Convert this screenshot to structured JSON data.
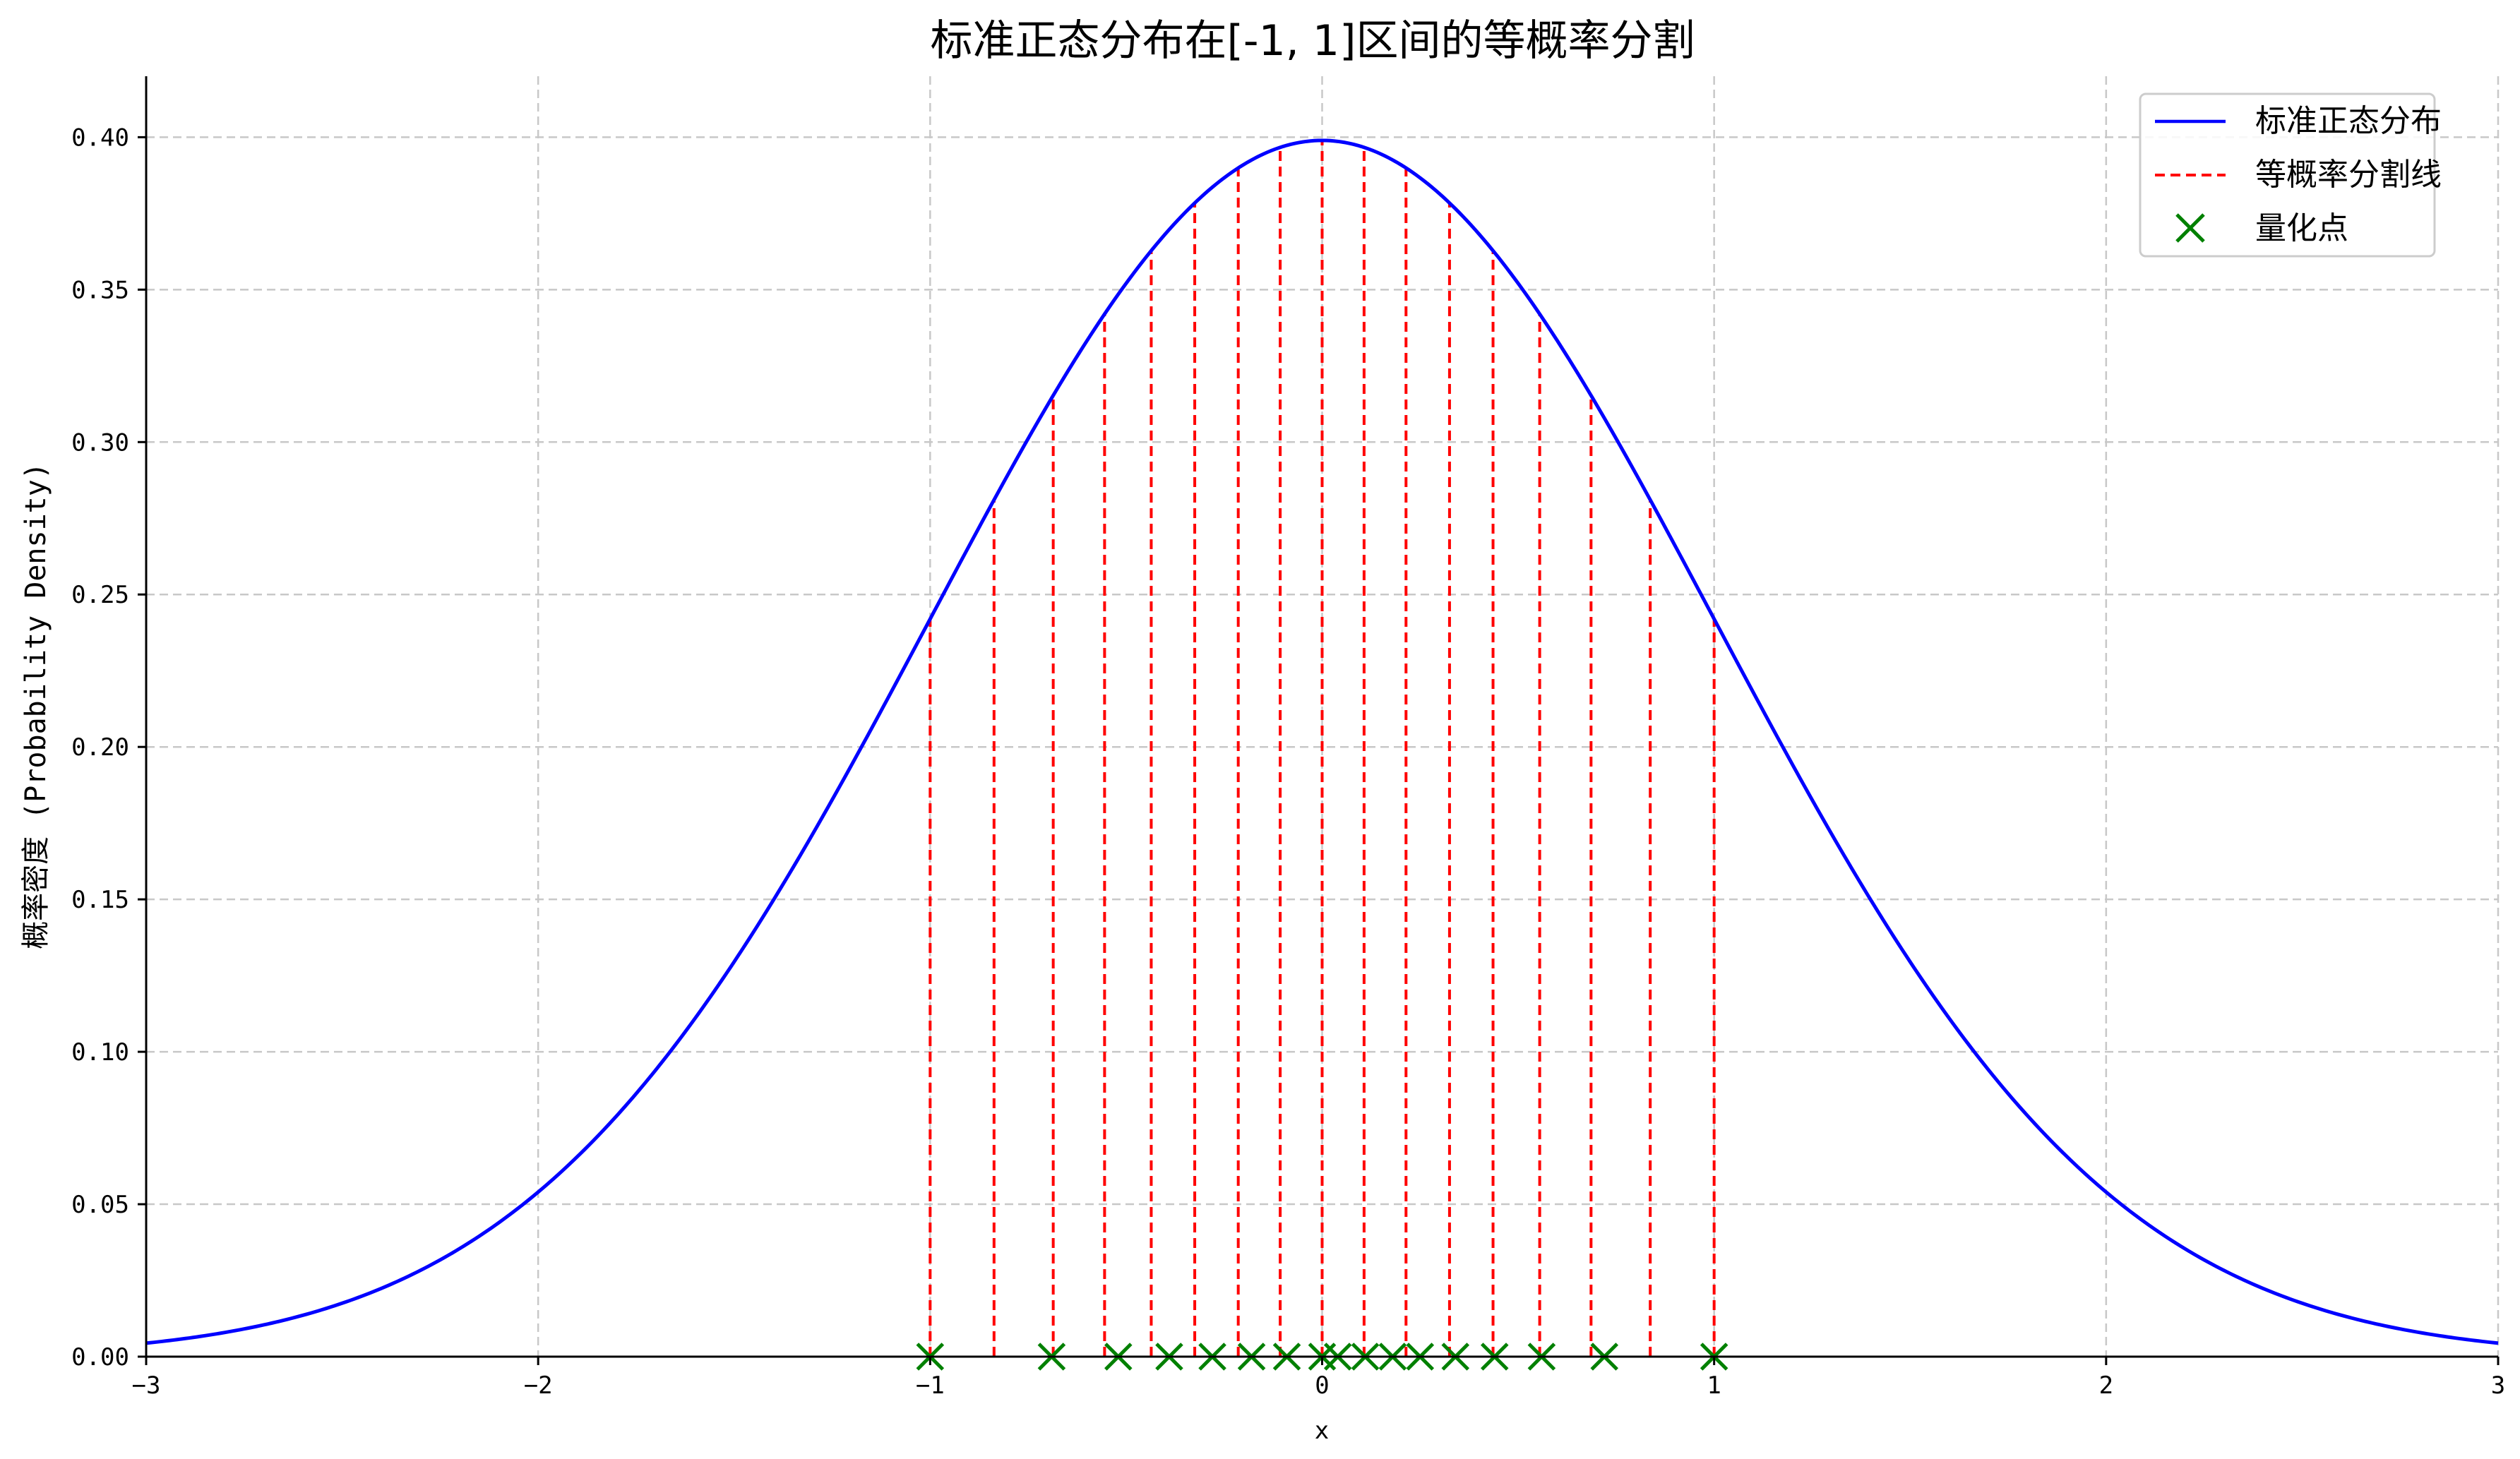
{
  "chart_data": {
    "type": "line",
    "title": "标准正态分布在[-1, 1]区间的等概率分割",
    "xlabel": "x",
    "ylabel": "概率密度 (Probability Density)",
    "xlim": [
      -3,
      3
    ],
    "ylim": [
      0,
      0.42
    ],
    "x_ticks": [
      -3,
      -2,
      -1,
      0,
      1,
      2,
      3
    ],
    "y_ticks": [
      0.0,
      0.05,
      0.1,
      0.15,
      0.2,
      0.25,
      0.3,
      0.35,
      0.4
    ],
    "x_tick_labels": [
      "−3",
      "−2",
      "−1",
      "0",
      "1",
      "2",
      "3"
    ],
    "y_tick_labels": [
      "0.00",
      "0.05",
      "0.10",
      "0.15",
      "0.20",
      "0.25",
      "0.30",
      "0.35",
      "0.40"
    ],
    "grid": true,
    "legend_position": "top-right",
    "series": [
      {
        "name": "标准正态分布",
        "kind": "line",
        "color": "#0000ff",
        "function": "standard-normal-pdf",
        "x_range": [
          -3,
          3
        ]
      },
      {
        "name": "等概率分割线",
        "kind": "vlines",
        "color": "#ff0000",
        "style": "dashed",
        "x": [
          -1.0,
          -0.837,
          -0.686,
          -0.555,
          -0.436,
          -0.325,
          -0.214,
          -0.107,
          0.0,
          0.107,
          0.214,
          0.325,
          0.436,
          0.555,
          0.686,
          0.837,
          1.0
        ]
      },
      {
        "name": "量化点",
        "kind": "scatter",
        "color": "#008000",
        "marker": "x",
        "y": 0,
        "x": [
          -1.0,
          -0.69,
          -0.52,
          -0.39,
          -0.28,
          -0.18,
          -0.09,
          0.0,
          0.04,
          0.11,
          0.18,
          0.25,
          0.34,
          0.44,
          0.56,
          0.72,
          1.0
        ]
      }
    ]
  }
}
